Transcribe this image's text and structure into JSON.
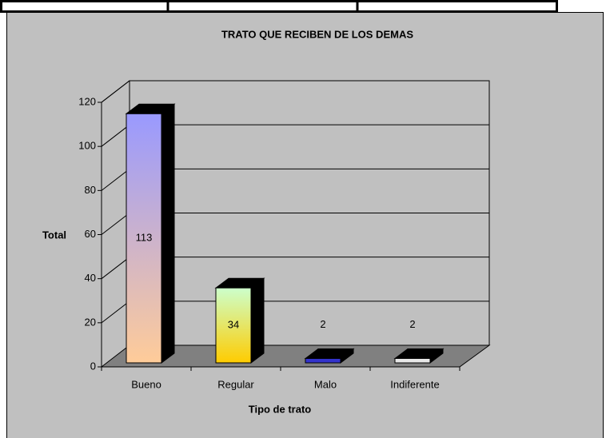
{
  "chart_data": {
    "type": "bar3d",
    "title": "TRATO QUE RECIBEN DE LOS DEMAS",
    "x_label": "Tipo de trato",
    "y_label": "Total",
    "categories": [
      "Bueno",
      "Regular",
      "Malo",
      "Indiferente"
    ],
    "values": [
      113,
      34,
      2,
      2
    ],
    "colors": [
      [
        "#9999ff",
        "#ffcc99"
      ],
      [
        "#ccffcc",
        "#ffcc00"
      ],
      [
        "#3333cc",
        "#3333cc"
      ],
      [
        "#e8e8e8",
        "#e8e8e8"
      ]
    ],
    "ylim": [
      0,
      120
    ],
    "yticks": [
      0,
      20,
      40,
      60,
      80,
      100,
      120
    ],
    "grid": true
  }
}
